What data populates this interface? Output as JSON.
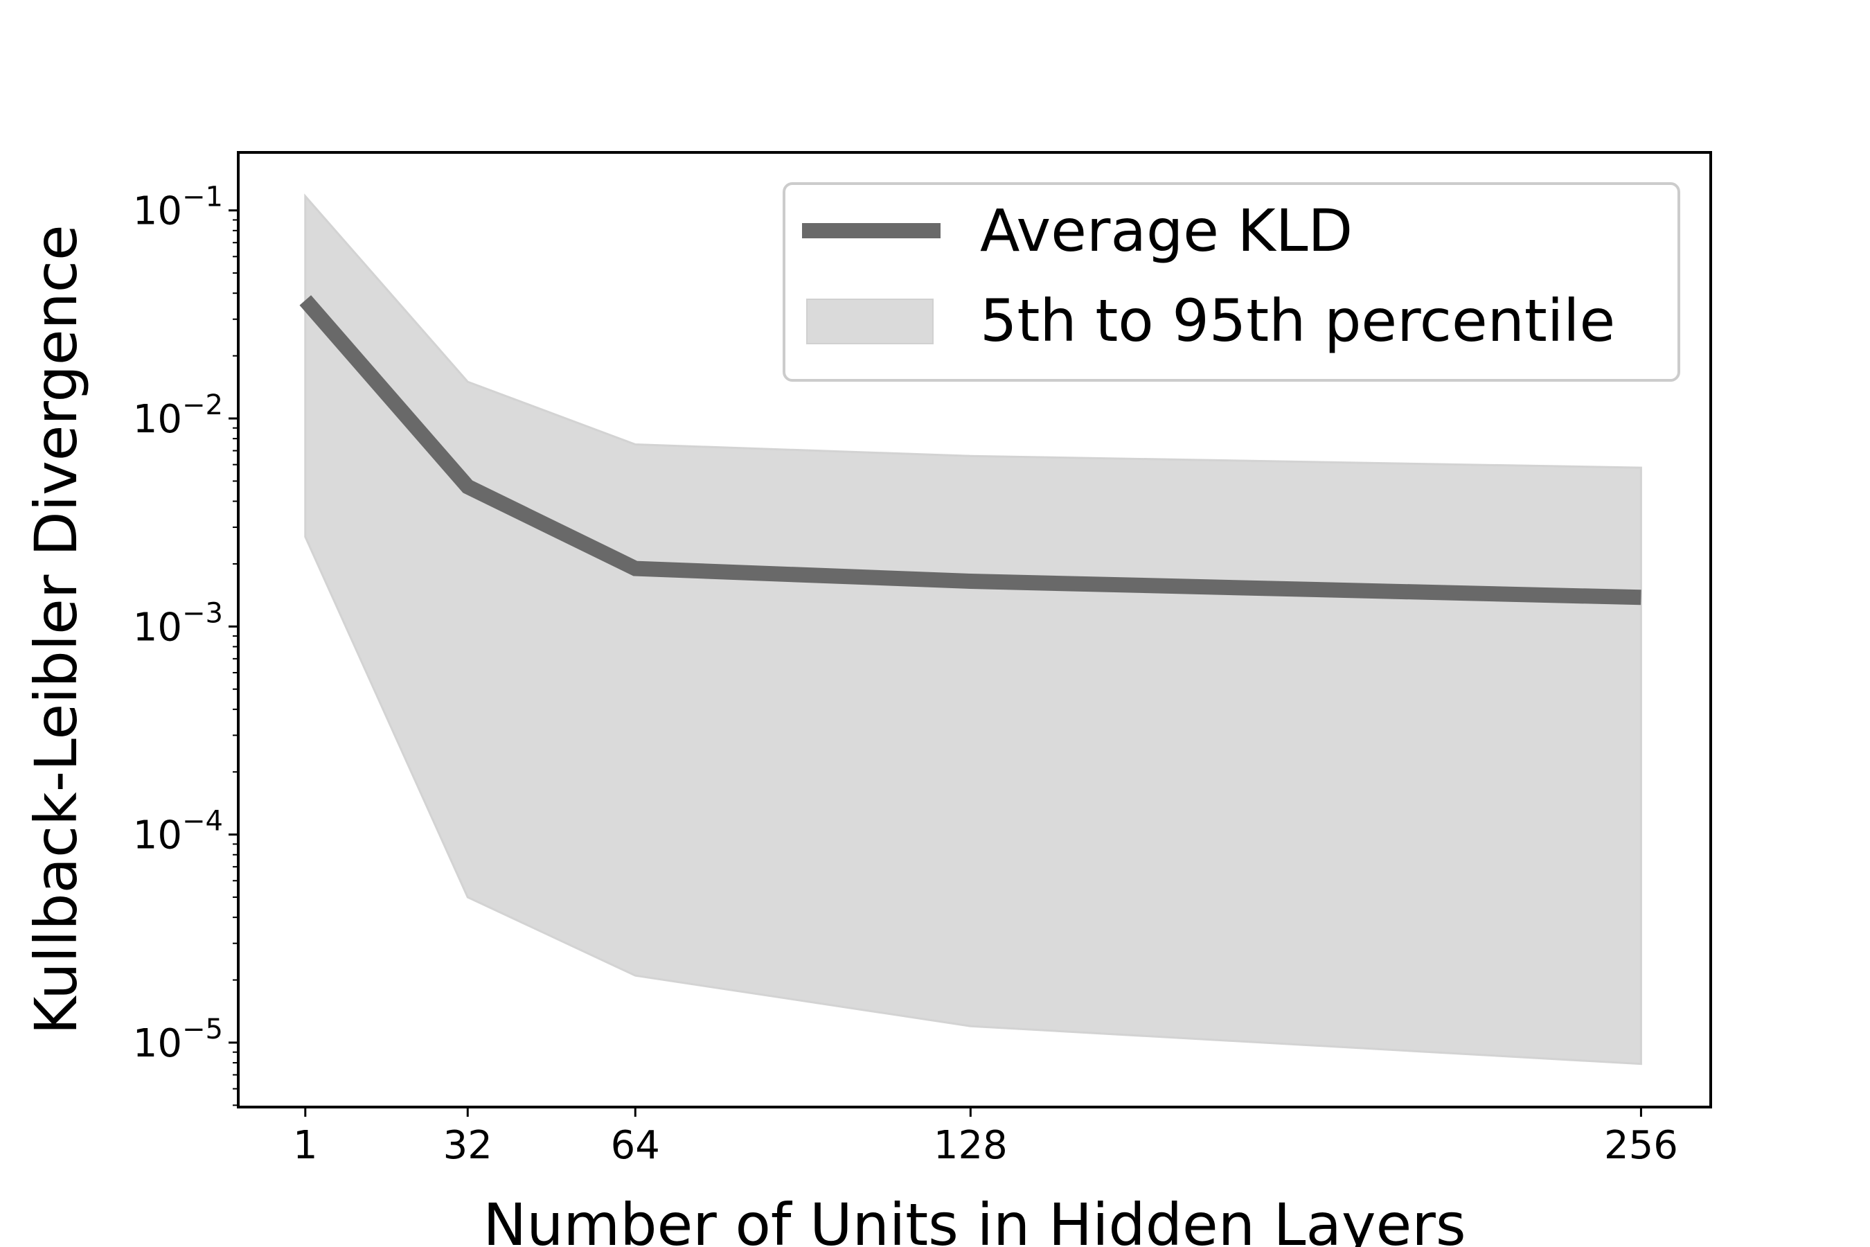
{
  "chart_data": {
    "type": "line",
    "title": "",
    "xlabel": "Number of Units in Hidden Layers",
    "ylabel": "Kullback-Leibler Divergence",
    "x": [
      1,
      32,
      64,
      128,
      256
    ],
    "x_tick_labels": [
      "1",
      "32",
      "64",
      "128",
      "256"
    ],
    "xlim": [
      -11.8,
      269.3
    ],
    "y_scale": "log",
    "ylim": [
      4.9e-06,
      0.19
    ],
    "y_ticks": [
      {
        "value": 0.1,
        "base": "10",
        "exp": "−1"
      },
      {
        "value": 0.01,
        "base": "10",
        "exp": "−2"
      },
      {
        "value": 0.001,
        "base": "10",
        "exp": "−3"
      },
      {
        "value": 0.0001,
        "base": "10",
        "exp": "−4"
      },
      {
        "value": 1e-05,
        "base": "10",
        "exp": "−5"
      }
    ],
    "series": [
      {
        "name": "Average KLD",
        "kind": "line",
        "color": "#696969",
        "values": [
          0.037,
          0.0047,
          0.0019,
          0.00165,
          0.00138
        ]
      },
      {
        "name": "5th to 95th percentile",
        "kind": "band",
        "color": "#dadada",
        "lower": [
          0.0027,
          5e-05,
          2.1e-05,
          1.2e-05,
          7.9e-06
        ],
        "upper": [
          0.117,
          0.015,
          0.0075,
          0.0066,
          0.0058
        ]
      }
    ],
    "legend_position": "top-right",
    "grid": false
  }
}
